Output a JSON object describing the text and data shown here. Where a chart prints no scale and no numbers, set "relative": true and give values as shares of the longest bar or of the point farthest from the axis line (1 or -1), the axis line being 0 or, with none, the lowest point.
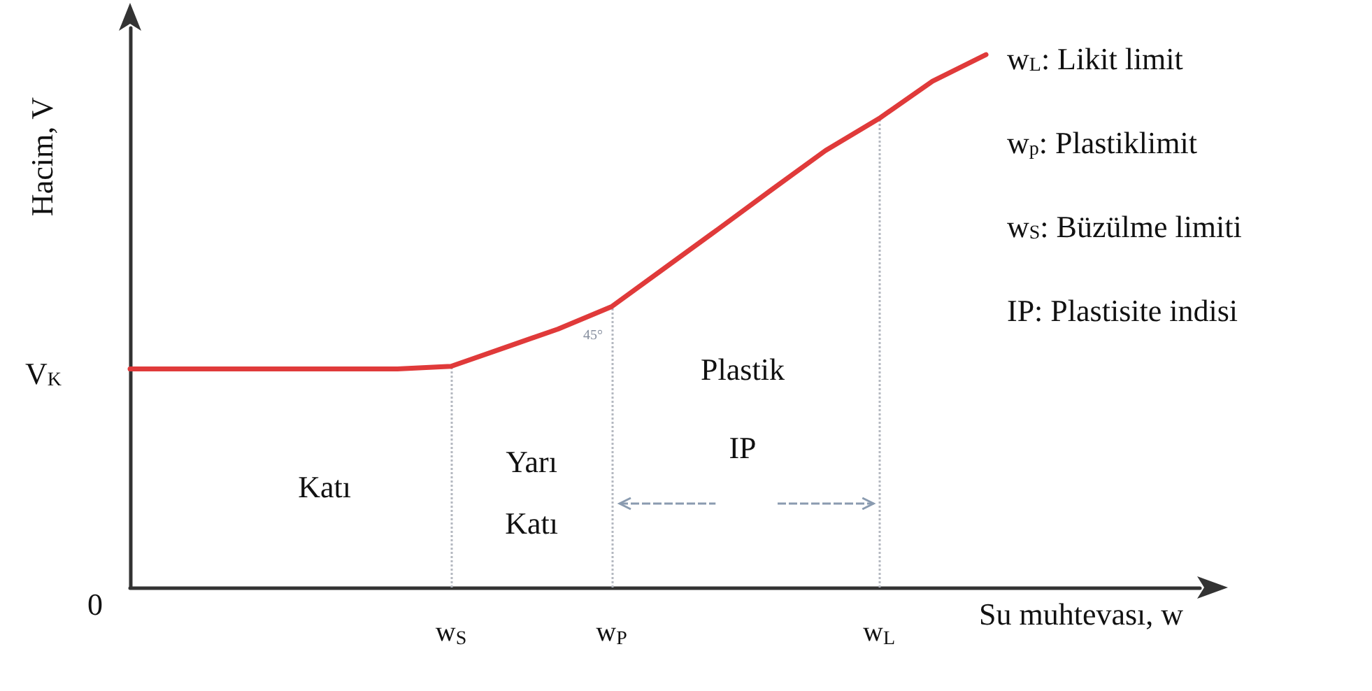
{
  "chart_data": {
    "type": "line",
    "relative": true,
    "xlabel": "Su muhtevası, w",
    "ylabel": "Hacim, V",
    "categories": [
      null,
      null,
      null,
      null,
      null,
      null,
      "w$_{S}$",
      null,
      null,
      "w$_{P}$",
      null,
      null,
      null,
      null,
      "w$_{L}$",
      null,
      null,
      null,
      null,
      null,
      null
    ],
    "values": [
      0.41,
      0.41,
      0.41,
      0.41,
      0.41,
      0.41,
      0.415,
      0.45,
      0.485,
      0.527,
      0.6,
      0.673,
      0.747,
      0.82,
      0.88,
      0.95,
      1.0,
      null,
      null,
      null,
      null
    ],
    "color": "#e03a3a",
    "marker": "none",
    "line_style": "solid",
    "grid": false,
    "ref_lines": [
      {
        "axis": "x",
        "value": "w$_{S}$",
        "color": "#b4b8c0",
        "line_style": "dotted"
      },
      {
        "axis": "x",
        "value": "w$_{P}$",
        "color": "#b4b8c0",
        "line_style": "dotted"
      },
      {
        "axis": "x",
        "value": "w$_{L}$",
        "color": "#b4b8c0",
        "line_style": "dotted"
      }
    ],
    "annotations": [
      "0",
      "V$_{K}$",
      "Katı",
      "Yarı\nKatı",
      "Plastik\nIP",
      "45°",
      "w$_{L}$: Likit limit",
      "w$_{p}$: Plastiklimit",
      "w$_{S}$: Büzülme limiti",
      "IP: Plastisite indisi"
    ]
  }
}
